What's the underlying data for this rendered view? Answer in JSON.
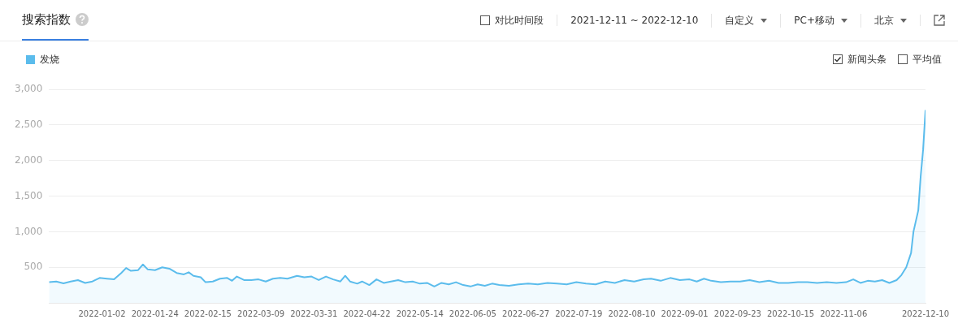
{
  "chart_data": {
    "type": "area",
    "title": "搜索指数",
    "annotations": [
      "对比时间段",
      "2021-12-11 ~ 2022-12-10",
      "自定义",
      "PC+移动",
      "北京",
      "新闻头条",
      "平均值"
    ],
    "x": [
      "2021-12-11",
      "2021-12-14",
      "2021-12-17",
      "2021-12-20",
      "2021-12-23",
      "2021-12-26",
      "2021-12-29",
      "2022-01-01",
      "2022-01-04",
      "2022-01-07",
      "2022-01-10",
      "2022-01-12",
      "2022-01-14",
      "2022-01-17",
      "2022-01-19",
      "2022-01-21",
      "2022-01-24",
      "2022-01-27",
      "2022-01-30",
      "2022-02-02",
      "2022-02-05",
      "2022-02-07",
      "2022-02-09",
      "2022-02-12",
      "2022-02-14",
      "2022-02-17",
      "2022-02-20",
      "2022-02-23",
      "2022-02-25",
      "2022-02-27",
      "2022-03-02",
      "2022-03-05",
      "2022-03-08",
      "2022-03-11",
      "2022-03-14",
      "2022-03-17",
      "2022-03-20",
      "2022-03-24",
      "2022-03-27",
      "2022-03-30",
      "2022-04-02",
      "2022-04-05",
      "2022-04-08",
      "2022-04-11",
      "2022-04-13",
      "2022-04-15",
      "2022-04-18",
      "2022-04-20",
      "2022-04-23",
      "2022-04-26",
      "2022-04-29",
      "2022-05-02",
      "2022-05-05",
      "2022-05-08",
      "2022-05-11",
      "2022-05-14",
      "2022-05-17",
      "2022-05-20",
      "2022-05-23",
      "2022-05-26",
      "2022-05-29",
      "2022-06-01",
      "2022-06-04",
      "2022-06-07",
      "2022-06-10",
      "2022-06-13",
      "2022-06-16",
      "2022-06-20",
      "2022-06-24",
      "2022-06-28",
      "2022-07-02",
      "2022-07-06",
      "2022-07-10",
      "2022-07-14",
      "2022-07-18",
      "2022-07-22",
      "2022-07-26",
      "2022-07-30",
      "2022-08-03",
      "2022-08-07",
      "2022-08-11",
      "2022-08-15",
      "2022-08-18",
      "2022-08-22",
      "2022-08-26",
      "2022-08-30",
      "2022-09-03",
      "2022-09-06",
      "2022-09-09",
      "2022-09-12",
      "2022-09-16",
      "2022-09-20",
      "2022-09-24",
      "2022-09-28",
      "2022-10-02",
      "2022-10-06",
      "2022-10-10",
      "2022-10-14",
      "2022-10-18",
      "2022-10-22",
      "2022-10-26",
      "2022-10-30",
      "2022-11-03",
      "2022-11-07",
      "2022-11-10",
      "2022-11-13",
      "2022-11-16",
      "2022-11-19",
      "2022-11-22",
      "2022-11-25",
      "2022-11-28",
      "2022-11-30",
      "2022-12-02",
      "2022-12-04",
      "2022-12-05",
      "2022-12-07",
      "2022-12-08",
      "2022-12-09",
      "2022-12-10"
    ],
    "series": [
      {
        "name": "发烧",
        "color": "#5bbcec",
        "values": [
          290,
          300,
          275,
          300,
          320,
          280,
          300,
          350,
          340,
          330,
          420,
          490,
          450,
          460,
          540,
          470,
          460,
          500,
          480,
          420,
          400,
          430,
          380,
          360,
          290,
          300,
          340,
          350,
          310,
          370,
          320,
          320,
          330,
          300,
          340,
          350,
          340,
          380,
          360,
          370,
          320,
          370,
          330,
          300,
          380,
          300,
          270,
          300,
          250,
          330,
          280,
          300,
          320,
          290,
          300,
          270,
          280,
          230,
          280,
          260,
          290,
          250,
          230,
          260,
          240,
          270,
          250,
          240,
          260,
          270,
          260,
          280,
          270,
          260,
          290,
          270,
          260,
          300,
          280,
          320,
          300,
          330,
          340,
          310,
          350,
          320,
          330,
          300,
          340,
          310,
          290,
          300,
          300,
          320,
          290,
          310,
          280,
          280,
          290,
          290,
          280,
          290,
          280,
          290,
          330,
          280,
          310,
          300,
          320,
          280,
          320,
          390,
          500,
          700,
          1000,
          1300,
          1780,
          2150,
          2710
        ]
      }
    ],
    "xlim": [
      "2021-12-11",
      "2022-12-10"
    ],
    "xticks": [
      "2022-01-02",
      "2022-01-24",
      "2022-02-15",
      "2022-03-09",
      "2022-03-31",
      "2022-04-22",
      "2022-05-14",
      "2022-06-05",
      "2022-06-27",
      "2022-07-19",
      "2022-08-10",
      "2022-09-01",
      "2022-09-23",
      "2022-10-15",
      "2022-11-06",
      "2022-12-10"
    ],
    "ylim": [
      0,
      3000
    ],
    "yticks": [
      {
        "value": 500,
        "label": "500"
      },
      {
        "value": 1000,
        "label": "1,000"
      },
      {
        "value": 1500,
        "label": "1,500"
      },
      {
        "value": 2000,
        "label": "2,000"
      },
      {
        "value": 2500,
        "label": "2,500"
      },
      {
        "value": 3000,
        "label": "3,000"
      }
    ],
    "grid": "y",
    "legend": "top left",
    "marker": "none",
    "line_style": "solid"
  }
}
